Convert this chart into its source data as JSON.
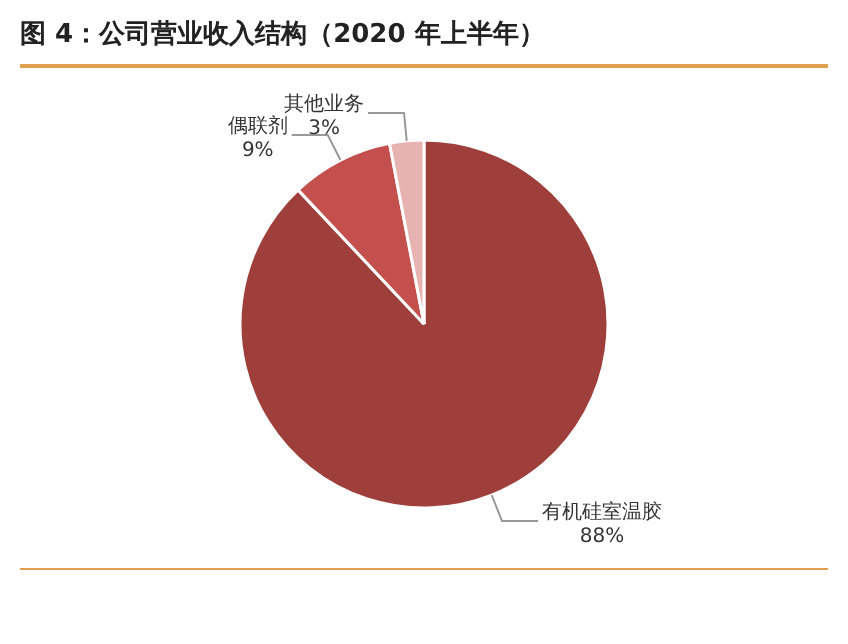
{
  "chart_data": {
    "type": "pie",
    "title": "图 4：公司营业收入结构（2020 年上半年）",
    "categories": [
      "有机硅室温胶",
      "偶联剂",
      "其他业务"
    ],
    "values": [
      88,
      9,
      3
    ],
    "value_labels": [
      "88%",
      "9%",
      "3%"
    ],
    "colors": [
      "#9e3f3b",
      "#c4504d",
      "#e6b3b0"
    ],
    "legend": false
  }
}
